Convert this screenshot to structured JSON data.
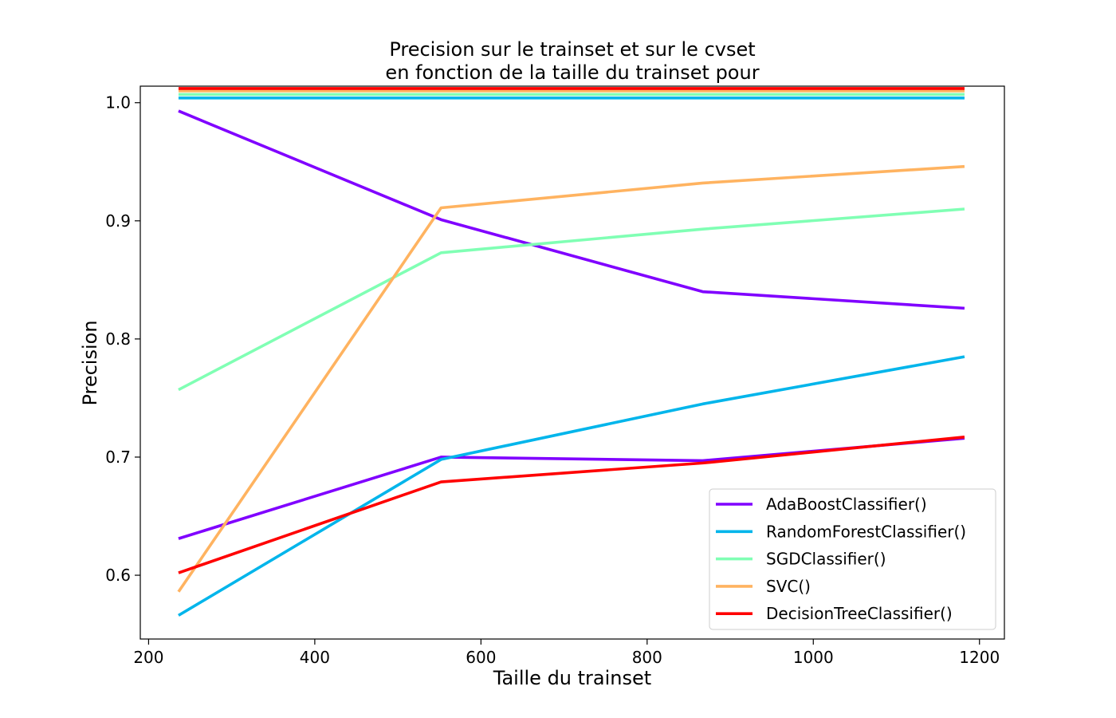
{
  "chart_data": {
    "type": "line",
    "title": [
      "Precision sur le trainset et sur le cvset",
      "en fonction de la taille du trainset pour"
    ],
    "xlabel": "Taille du trainset",
    "ylabel": "Precision",
    "xlim": [
      190,
      1230
    ],
    "ylim": [
      0.546,
      1.014
    ],
    "xticks": [
      200,
      400,
      600,
      800,
      1000,
      1200
    ],
    "xtick_labels": [
      "200",
      "400",
      "600",
      "800",
      "1000",
      "1200"
    ],
    "yticks": [
      0.6,
      0.7,
      0.8,
      0.9,
      1.0
    ],
    "ytick_labels": [
      "0.6",
      "0.7",
      "0.8",
      "0.9",
      "1.0"
    ],
    "grid": false,
    "legend_position": "bottom-right",
    "x": [
      236,
      552,
      867,
      1182
    ],
    "series": [
      {
        "name": "AdaBoostClassifier()",
        "color": "#8000ff",
        "train": [
          0.993,
          0.901,
          0.84,
          0.826
        ],
        "cv": [
          0.631,
          0.7,
          0.697,
          0.716
        ]
      },
      {
        "name": "RandomForestClassifier()",
        "color": "#00b5eb",
        "train": [
          1.004,
          1.004,
          1.004,
          1.004
        ],
        "cv": [
          0.566,
          0.698,
          0.745,
          0.785
        ]
      },
      {
        "name": "SGDClassifier()",
        "color": "#80ffb4",
        "train": [
          1.007,
          1.007,
          1.007,
          1.007
        ],
        "cv": [
          0.757,
          0.873,
          0.893,
          0.91
        ]
      },
      {
        "name": "SVC()",
        "color": "#ffb360",
        "train": [
          1.01,
          1.01,
          1.01,
          1.01
        ],
        "cv": [
          0.586,
          0.911,
          0.932,
          0.946
        ]
      },
      {
        "name": "DecisionTreeClassifier()",
        "color": "#ff0000",
        "train": [
          1.012,
          1.012,
          1.012,
          1.012
        ],
        "cv": [
          0.602,
          0.679,
          0.695,
          0.717
        ]
      }
    ]
  }
}
